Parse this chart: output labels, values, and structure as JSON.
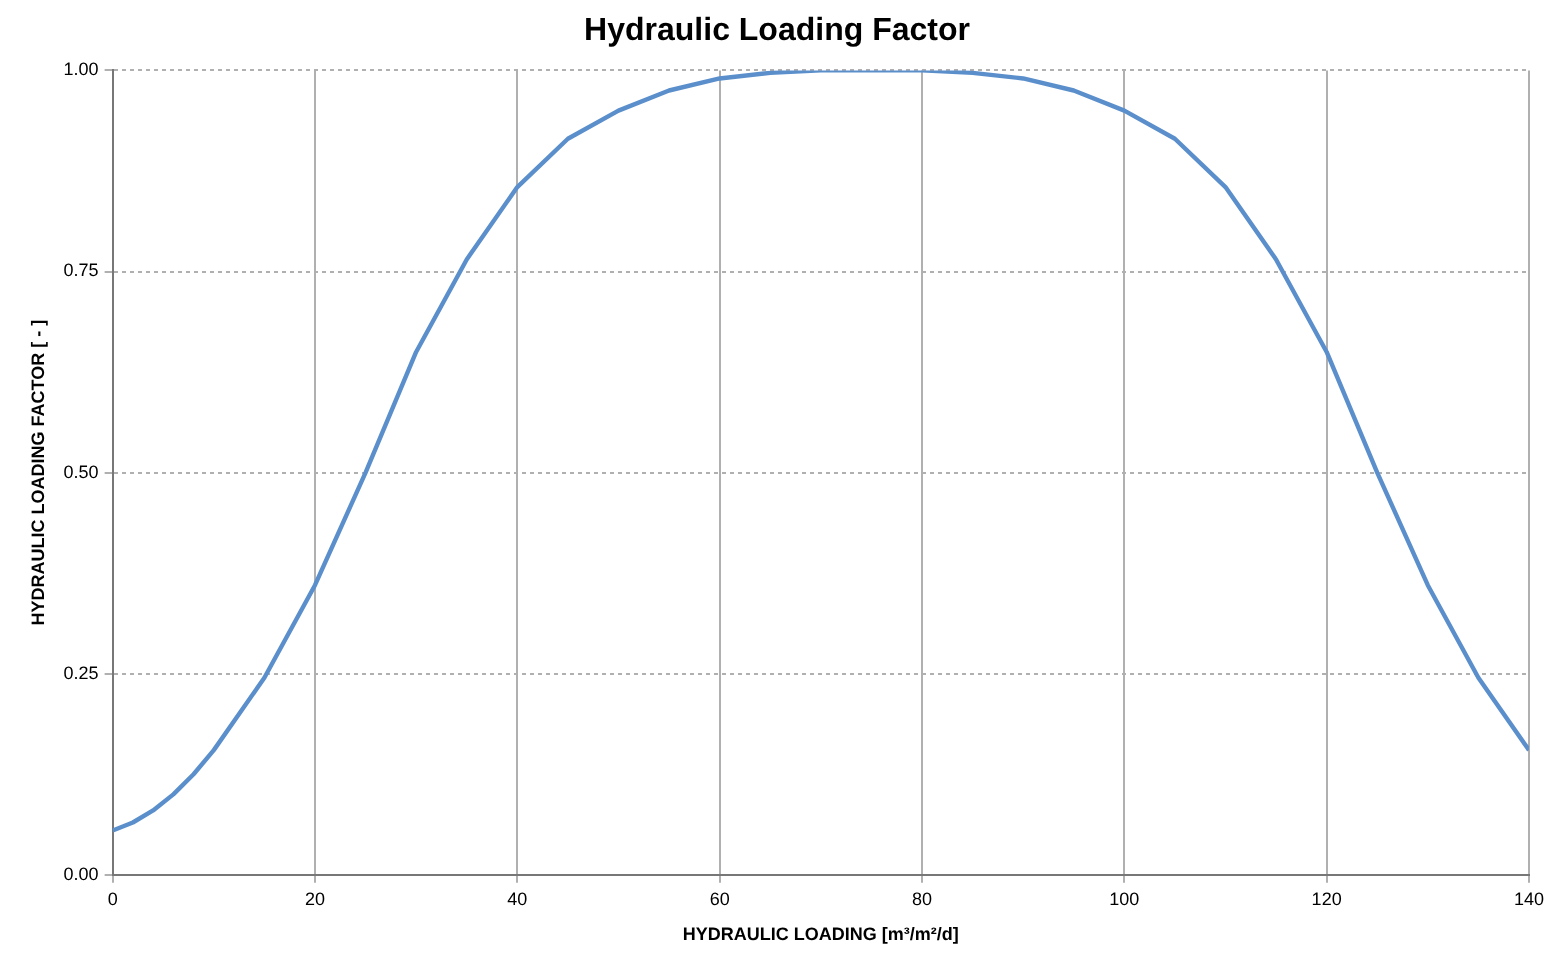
{
  "chart_data": {
    "type": "line",
    "title": "Hydraulic Loading Factor",
    "xlabel": "HYDRAULIC LOADING [m³/m²/d]",
    "ylabel": "HYDRAULIC LOADING FACTOR [ - ]",
    "x": [
      0,
      2,
      4,
      6,
      8,
      10,
      15,
      20,
      25,
      30,
      35,
      40,
      45,
      50,
      55,
      60,
      65,
      70,
      75,
      80,
      85,
      90,
      95,
      100,
      105,
      110,
      115,
      120,
      125,
      130,
      135,
      140
    ],
    "series": [
      {
        "color": "#5b8fcc",
        "values": [
          0.055,
          0.065,
          0.08,
          0.1,
          0.125,
          0.155,
          0.245,
          0.36,
          0.5,
          0.65,
          0.765,
          0.855,
          0.915,
          0.95,
          0.975,
          0.99,
          0.997,
          1.0,
          1.0,
          1.0,
          0.997,
          0.99,
          0.975,
          0.95,
          0.915,
          0.855,
          0.765,
          0.65,
          0.5,
          0.36,
          0.245,
          0.155
        ]
      }
    ],
    "xlim": [
      0,
      140
    ],
    "xticks": [
      0,
      20,
      40,
      60,
      80,
      100,
      120,
      140
    ],
    "ylim": [
      0,
      1
    ],
    "yticks": [
      {
        "value": 0,
        "label": "0.00"
      },
      {
        "value": 0.25,
        "label": "0.25"
      },
      {
        "value": 0.5,
        "label": "0.50"
      },
      {
        "value": 0.75,
        "label": "0.75"
      },
      {
        "value": 1,
        "label": "1.00"
      }
    ],
    "grid": true,
    "legend": false,
    "marker": "none",
    "line_style": "solid"
  }
}
